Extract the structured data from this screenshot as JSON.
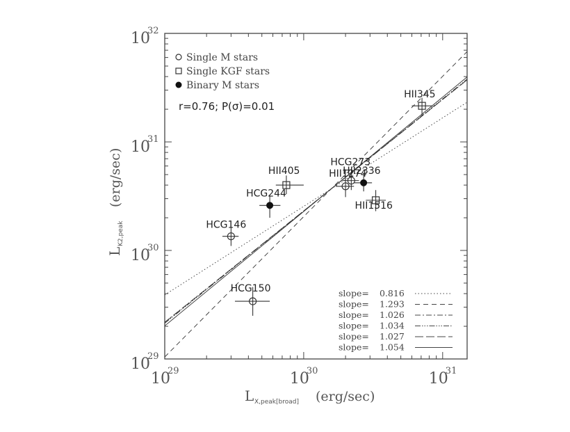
{
  "chart_data": {
    "type": "scatter",
    "x_scale": "log",
    "y_scale": "log",
    "xlim": [
      1e+29,
      1.5e+31
    ],
    "ylim": [
      1e+29,
      1e+32
    ],
    "xlabel": {
      "prefix": "L",
      "subscript": "X,peak[broad]",
      "units": "(erg/sec)"
    },
    "ylabel": {
      "prefix": "L",
      "subscript": "K2,peak",
      "units": "(erg/sec)"
    },
    "x_ticks": [
      {
        "value": 1e+29,
        "base": "10",
        "exp": "29"
      },
      {
        "value": 1e+30,
        "base": "10",
        "exp": "30"
      },
      {
        "value": 1e+31,
        "base": "10",
        "exp": "31"
      }
    ],
    "y_ticks": [
      {
        "value": 1e+29,
        "base": "10",
        "exp": "29"
      },
      {
        "value": 1e+30,
        "base": "10",
        "exp": "30"
      },
      {
        "value": 1e+31,
        "base": "10",
        "exp": "31"
      },
      {
        "value": 1e+32,
        "base": "10",
        "exp": "32"
      }
    ],
    "legend": {
      "position": "top-left",
      "entries": [
        {
          "marker": "open-circle",
          "label": "Single M stars"
        },
        {
          "marker": "open-square",
          "label": "Single KGF stars"
        },
        {
          "marker": "filled-circle",
          "label": "Binary M stars"
        }
      ]
    },
    "stat_annotation": "r=0.76; P(σ)=0.01",
    "points": [
      {
        "name": "HCG146",
        "type": "open-circle",
        "x": 3e+29,
        "y": 1.35e+30,
        "xerr": [
          2.6e+29,
          3.4e+29
        ],
        "yerr": [
          1.1e+30,
          1.65e+30
        ]
      },
      {
        "name": "HCG150",
        "type": "open-circle",
        "x": 4.3e+29,
        "y": 3.4e+29,
        "xerr": [
          3.2e+29,
          5.7e+29
        ],
        "yerr": [
          2.5e+29,
          4.6e+29
        ]
      },
      {
        "name": "HCG244",
        "type": "filled-circle",
        "x": 5.7e+29,
        "y": 2.6e+30,
        "xerr": [
          4.8e+29,
          6.8e+29
        ],
        "yerr": [
          2e+30,
          3.2e+30
        ]
      },
      {
        "name": "HII405",
        "type": "open-square",
        "x": 7.5e+29,
        "y": 4e+30,
        "xerr": [
          6.3e+29,
          1e+30
        ],
        "yerr": [
          3.3e+30,
          4.9e+30
        ]
      },
      {
        "name": "HII1274",
        "type": "open-circle",
        "x": 2e+30,
        "y": 3.9e+30,
        "xerr": [
          1.7e+30,
          2.3e+30
        ],
        "yerr": [
          3.1e+30,
          4.8e+30
        ]
      },
      {
        "name": "HCG273",
        "type": "open-circle",
        "x": 2.2e+30,
        "y": 4.4e+30,
        "xerr": [
          1.9e+30,
          2.5e+30
        ],
        "yerr": [
          3.6e+30,
          5.3e+30
        ]
      },
      {
        "name": "HII2336",
        "type": "filled-circle",
        "x": 2.7e+30,
        "y": 4.2e+30,
        "xerr": [
          2.3e+30,
          3.1e+30
        ],
        "yerr": [
          3.5e+30,
          5e+30
        ]
      },
      {
        "name": "HII1516",
        "type": "open-square",
        "x": 3.3e+30,
        "y": 2.9e+30,
        "xerr": [
          2.8e+30,
          3.9e+30
        ],
        "yerr": [
          2.3e+30,
          3.6e+30
        ]
      },
      {
        "name": "HII345",
        "type": "open-square",
        "x": 7.1e+30,
        "y": 2.15e+31,
        "xerr": [
          6e+30,
          8.4e+30
        ],
        "yerr": [
          1.75e+31,
          2.55e+31
        ]
      }
    ],
    "label_texts": {
      "HCG146": "HCG146",
      "HCG150": "HCG150",
      "HCG244": "HCG244",
      "HII405": "HII405",
      "HII1274": "HII1274",
      "HCG273": "HCG273",
      "HII2336": "HII2336",
      "HII1516": "HII1516",
      "HII345": "HII345"
    },
    "fits": [
      {
        "slope_label": "slope=",
        "slope": "0.816",
        "style": "dotted"
      },
      {
        "slope_label": "slope=",
        "slope": "1.293",
        "style": "dashed"
      },
      {
        "slope_label": "slope=",
        "slope": "1.026",
        "style": "dashdot"
      },
      {
        "slope_label": "slope=",
        "slope": "1.034",
        "style": "dashdotdotdot"
      },
      {
        "slope_label": "slope=",
        "slope": "1.027",
        "style": "longdash"
      },
      {
        "slope_label": "slope=",
        "slope": "1.054",
        "style": "solid"
      }
    ],
    "fit_pivot": {
      "x": 1.58e+30,
      "y": 3.7e+30
    },
    "colors": {
      "axes": "#444444",
      "text": "#444444",
      "data": "#333333",
      "background": "#ffffff"
    }
  }
}
